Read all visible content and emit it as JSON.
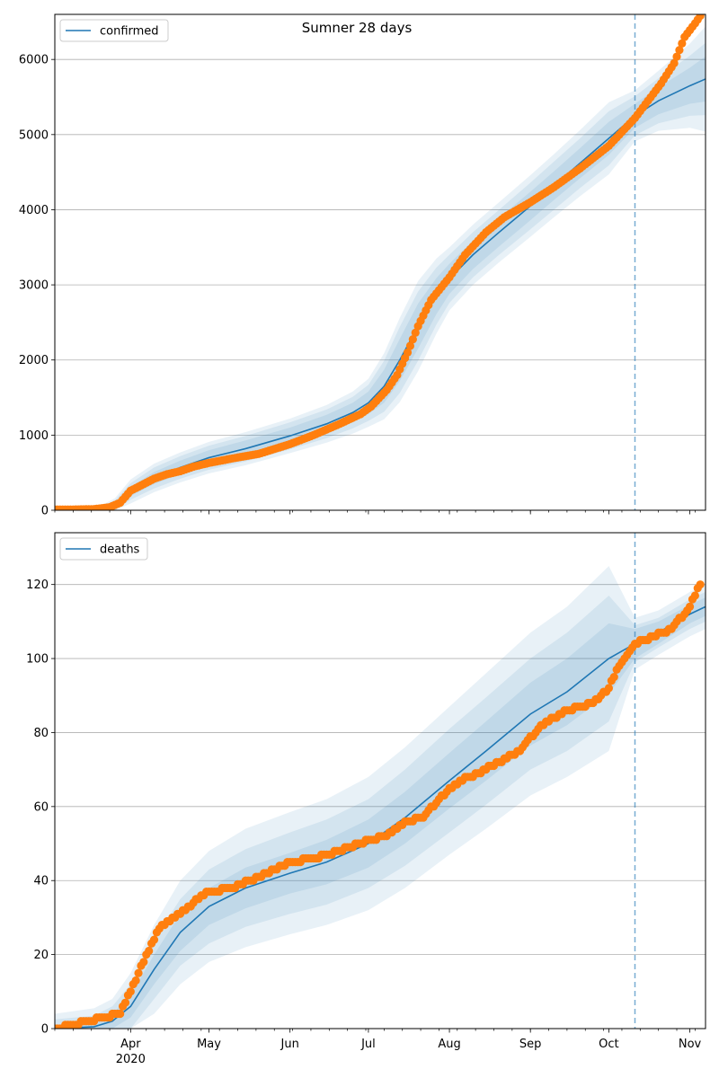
{
  "title": "Sumner 28 days",
  "colors": {
    "model_line": "#1f77b4",
    "observed": "#ff7f0e",
    "band": "#1f77b4",
    "grid": "#b0b0b0",
    "forecast_marker": "#1f77b4"
  },
  "x_ticks": {
    "labels": [
      "Apr",
      "May",
      "Jun",
      "Jul",
      "Aug",
      "Sep",
      "Oct",
      "Nov"
    ],
    "label_dates": [
      "2020-04-01",
      "2020-05-01",
      "2020-06-01",
      "2020-07-01",
      "2020-08-01",
      "2020-09-01",
      "2020-10-01",
      "2020-11-01"
    ],
    "year_label": "2020",
    "xlim": [
      "2020-03-03",
      "2020-11-07"
    ],
    "forecast_start": "2020-10-11"
  },
  "chart_data": [
    {
      "type": "line",
      "legend": "confirmed",
      "legend_position": "upper-left",
      "grid": "horizontal",
      "ylim": [
        0,
        6600
      ],
      "yticks": [
        "0",
        "1000",
        "2000",
        "3000",
        "4000",
        "5000",
        "6000"
      ],
      "model_dates": [
        "2020-03-03",
        "2020-03-20",
        "2020-03-26",
        "2020-04-01",
        "2020-04-10",
        "2020-04-20",
        "2020-05-01",
        "2020-05-15",
        "2020-06-01",
        "2020-06-15",
        "2020-06-25",
        "2020-07-01",
        "2020-07-07",
        "2020-07-13",
        "2020-07-20",
        "2020-07-27",
        "2020-08-01",
        "2020-08-10",
        "2020-08-20",
        "2020-09-01",
        "2020-09-10",
        "2020-09-20",
        "2020-10-01",
        "2020-10-11",
        "2020-10-20",
        "2020-11-01",
        "2020-11-07"
      ],
      "model_values": [
        10,
        15,
        60,
        250,
        430,
        570,
        700,
        820,
        990,
        1150,
        1300,
        1430,
        1650,
        2000,
        2450,
        2850,
        3080,
        3400,
        3700,
        4050,
        4320,
        4620,
        4950,
        5250,
        5450,
        5650,
        5740
      ],
      "band_half_widths": [
        [
          10,
          15,
          40,
          60,
          80,
          90,
          100,
          110,
          110,
          120,
          130,
          150,
          220,
          280,
          300,
          240,
          200,
          190,
          190,
          190,
          190,
          200,
          220,
          160,
          180,
          240,
          300
        ],
        [
          15,
          25,
          70,
          110,
          140,
          150,
          160,
          170,
          180,
          190,
          210,
          240,
          340,
          440,
          460,
          380,
          320,
          300,
          300,
          310,
          320,
          330,
          360,
          260,
          300,
          400,
          480
        ],
        [
          20,
          35,
          100,
          160,
          190,
          200,
          210,
          220,
          230,
          250,
          280,
          320,
          440,
          560,
          600,
          500,
          420,
          400,
          400,
          410,
          420,
          440,
          480,
          340,
          400,
          560,
          700
        ]
      ],
      "observed_dates": [
        "2020-03-03",
        "2020-03-10",
        "2020-03-18",
        "2020-03-24",
        "2020-03-28",
        "2020-04-01",
        "2020-04-05",
        "2020-04-10",
        "2020-04-15",
        "2020-04-20",
        "2020-04-25",
        "2020-05-01",
        "2020-05-10",
        "2020-05-20",
        "2020-06-01",
        "2020-06-10",
        "2020-06-20",
        "2020-06-28",
        "2020-07-02",
        "2020-07-08",
        "2020-07-12",
        "2020-07-16",
        "2020-07-20",
        "2020-07-25",
        "2020-08-01",
        "2020-08-07",
        "2020-08-15",
        "2020-08-22",
        "2020-09-01",
        "2020-09-10",
        "2020-09-20",
        "2020-10-01",
        "2020-10-11",
        "2020-10-16",
        "2020-10-21",
        "2020-10-26",
        "2020-10-30",
        "2020-11-03",
        "2020-11-05"
      ],
      "observed_values": [
        10,
        10,
        15,
        40,
        100,
        260,
        330,
        420,
        480,
        520,
        580,
        630,
        690,
        750,
        880,
        1000,
        1150,
        1280,
        1380,
        1600,
        1800,
        2100,
        2450,
        2800,
        3100,
        3400,
        3700,
        3900,
        4100,
        4300,
        4550,
        4850,
        5220,
        5450,
        5680,
        5950,
        6300,
        6480,
        6580
      ]
    },
    {
      "type": "line",
      "legend": "deaths",
      "legend_position": "upper-left",
      "grid": "horizontal",
      "ylim": [
        0,
        134
      ],
      "yticks": [
        "0",
        "20",
        "40",
        "60",
        "80",
        "100",
        "120"
      ],
      "model_dates": [
        "2020-03-03",
        "2020-03-18",
        "2020-03-25",
        "2020-04-01",
        "2020-04-10",
        "2020-04-20",
        "2020-05-01",
        "2020-05-15",
        "2020-06-01",
        "2020-06-15",
        "2020-07-01",
        "2020-07-15",
        "2020-08-01",
        "2020-08-15",
        "2020-09-01",
        "2020-09-15",
        "2020-10-01",
        "2020-10-11",
        "2020-10-20",
        "2020-11-01",
        "2020-11-07"
      ],
      "model_values": [
        0,
        0.5,
        2,
        6,
        16,
        26,
        33,
        38,
        42,
        45,
        50,
        57,
        67,
        75,
        85,
        91,
        100,
        104,
        107,
        112,
        114
      ],
      "band_half_widths": [
        [
          1,
          1.5,
          2,
          3,
          4,
          5,
          5,
          5.5,
          5.5,
          6,
          6.5,
          7,
          7.5,
          8,
          8.5,
          9,
          9.5,
          4,
          3,
          2.5,
          2.5
        ],
        [
          2.5,
          3,
          4,
          6,
          8,
          9,
          10,
          10.5,
          11,
          11.5,
          12,
          13,
          14,
          14.5,
          15,
          16,
          17,
          5,
          4,
          4,
          4
        ],
        [
          4,
          5,
          6,
          9,
          12,
          14,
          15,
          16,
          16.5,
          17,
          18,
          19,
          20,
          21,
          22,
          23,
          25,
          7,
          6,
          6,
          6
        ]
      ],
      "observed_dates": [
        "2020-03-03",
        "2020-03-28",
        "2020-04-01",
        "2020-04-04",
        "2020-04-08",
        "2020-04-12",
        "2020-04-18",
        "2020-04-25",
        "2020-05-01",
        "2020-05-10",
        "2020-05-20",
        "2020-06-01",
        "2020-06-10",
        "2020-06-20",
        "2020-07-01",
        "2020-07-08",
        "2020-07-15",
        "2020-07-22",
        "2020-07-28",
        "2020-08-05",
        "2020-08-12",
        "2020-08-20",
        "2020-08-28",
        "2020-09-05",
        "2020-09-15",
        "2020-09-25",
        "2020-10-01",
        "2020-10-05",
        "2020-10-11",
        "2020-10-18",
        "2020-10-25",
        "2020-11-01",
        "2020-11-03",
        "2020-11-05"
      ],
      "observed_values": [
        0,
        4,
        10,
        15,
        21,
        27,
        30,
        34,
        37,
        38,
        41,
        45,
        46,
        48,
        51,
        52,
        56,
        57,
        62,
        67,
        69,
        72,
        75,
        82,
        86,
        88,
        92,
        98,
        104,
        106,
        108,
        114,
        117,
        120
      ]
    }
  ]
}
